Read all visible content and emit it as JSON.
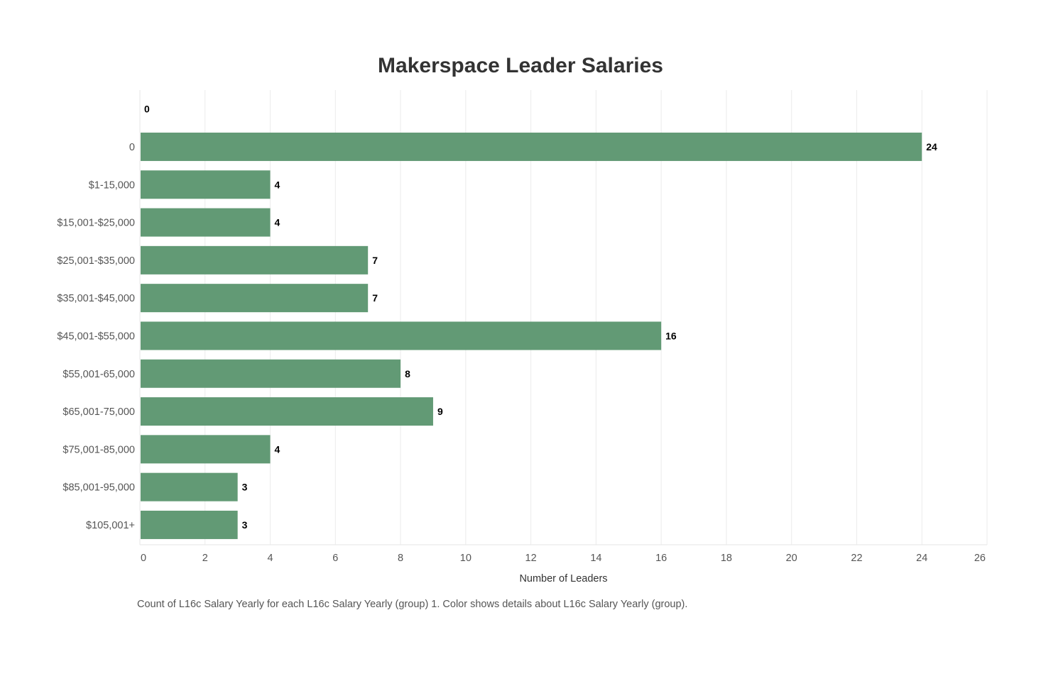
{
  "chart_data": {
    "type": "bar",
    "orientation": "horizontal",
    "title": "Makerspace Leader Salaries",
    "xlabel": "Number of Leaders",
    "ylabel": "",
    "categories": [
      "",
      "0",
      "$1-15,000",
      "$15,001-$25,000",
      "$25,001-$35,000",
      "$35,001-$45,000",
      "$45,001-$55,000",
      "$55,001-65,000",
      "$65,001-75,000",
      "$75,001-85,000",
      "$85,001-95,000",
      "$105,001+"
    ],
    "values": [
      0,
      24,
      4,
      4,
      7,
      7,
      16,
      8,
      9,
      4,
      3,
      3
    ],
    "xlim": [
      0,
      26
    ],
    "xticks": [
      0,
      2,
      4,
      6,
      8,
      10,
      12,
      14,
      16,
      18,
      20,
      22,
      24,
      26
    ],
    "grid": true,
    "legend": "none",
    "colors": {
      "bar": "#629a75",
      "grid": "#ebebeb",
      "label": "#000000"
    }
  },
  "caption": "Count of L16c Salary Yearly for each L16c Salary Yearly (group) 1.  Color shows details about L16c Salary Yearly (group)."
}
